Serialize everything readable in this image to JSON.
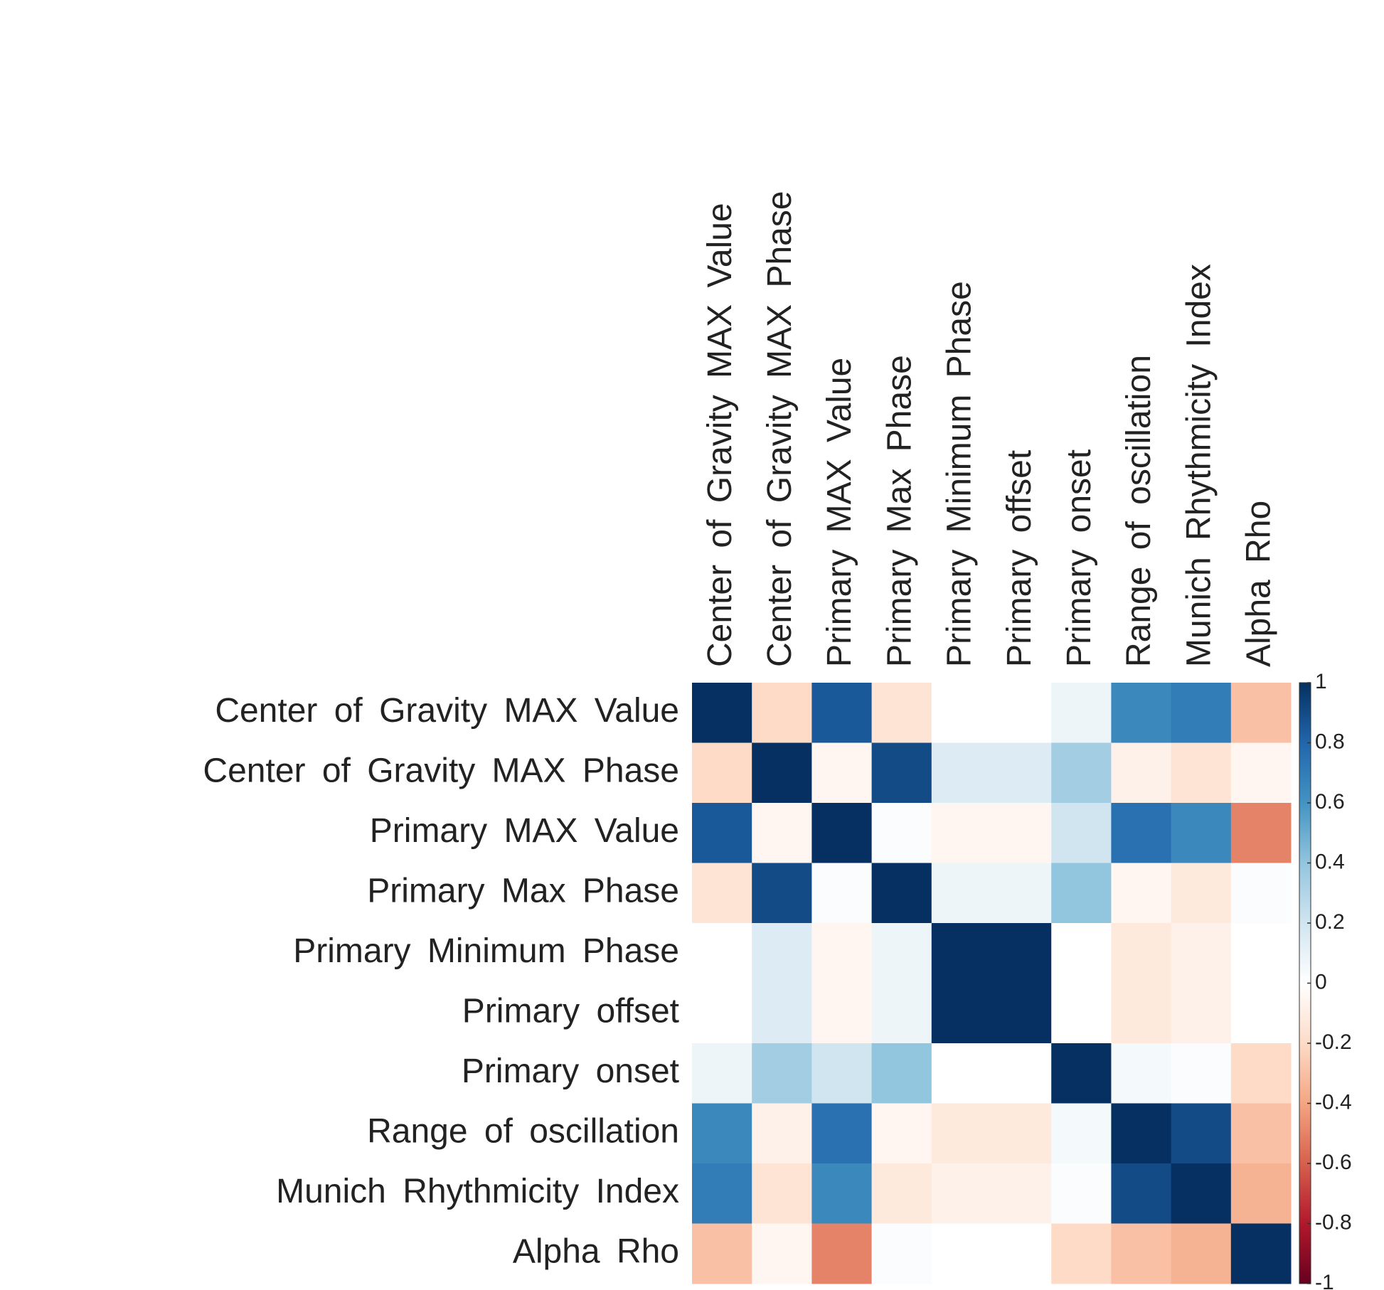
{
  "chart_data": {
    "type": "heatmap",
    "x_categories": [
      "Center of Gravity MAX Value",
      "Center of Gravity MAX Phase",
      "Primary MAX Value",
      "Primary Max Phase",
      "Primary Minimum Phase",
      "Primary offset",
      "Primary onset",
      "Range of oscillation",
      "Munich Rhythmicity Index",
      "Alpha Rho"
    ],
    "y_categories": [
      "Center of Gravity MAX Value",
      "Center of Gravity MAX Phase",
      "Primary MAX Value",
      "Primary Max Phase",
      "Primary Minimum Phase",
      "Primary offset",
      "Primary onset",
      "Range of oscillation",
      "Munich Rhythmicity Index",
      "Alpha Rho"
    ],
    "values": [
      [
        1,
        -0.2,
        0.85,
        -0.15,
        0,
        0,
        0.08,
        0.65,
        0.7,
        -0.3
      ],
      [
        -0.2,
        1,
        -0.05,
        0.9,
        0.15,
        0.15,
        0.35,
        -0.08,
        -0.15,
        -0.05
      ],
      [
        0.85,
        -0.05,
        1,
        0.02,
        -0.05,
        -0.05,
        0.2,
        0.75,
        0.65,
        -0.5
      ],
      [
        -0.15,
        0.9,
        0.02,
        1,
        0.08,
        0.08,
        0.4,
        -0.05,
        -0.12,
        0.02
      ],
      [
        0,
        0.15,
        -0.05,
        0.08,
        1,
        1,
        0,
        -0.12,
        -0.08,
        0
      ],
      [
        0,
        0.15,
        -0.05,
        0.08,
        1,
        1,
        0,
        -0.12,
        -0.08,
        0
      ],
      [
        0.08,
        0.35,
        0.2,
        0.4,
        0,
        0,
        1,
        0.05,
        0.02,
        -0.2
      ],
      [
        0.65,
        -0.08,
        0.75,
        -0.05,
        -0.12,
        -0.12,
        0.05,
        1,
        0.9,
        -0.3
      ],
      [
        0.7,
        -0.15,
        0.65,
        -0.12,
        -0.08,
        -0.08,
        0.02,
        0.9,
        1,
        -0.35
      ],
      [
        -0.3,
        -0.05,
        -0.5,
        0.02,
        0,
        0,
        -0.2,
        -0.3,
        -0.35,
        1
      ]
    ],
    "colorscale": [
      "#67001f",
      "#b2182b",
      "#d6604d",
      "#f4a582",
      "#fddbc7",
      "#ffffff",
      "#d1e5f0",
      "#92c5de",
      "#4393c3",
      "#2166ac",
      "#053061"
    ],
    "zlim": [
      -1,
      1
    ],
    "zticks": [
      1,
      0.8,
      0.6,
      0.4,
      0.2,
      0,
      -0.2,
      -0.4,
      -0.6,
      -0.8,
      -1
    ]
  }
}
